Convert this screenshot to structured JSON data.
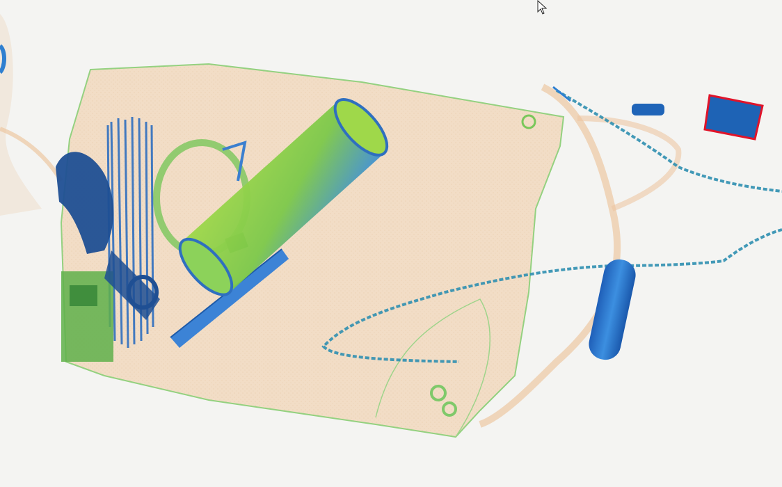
{
  "viewer": {
    "background": "#f4f4f2",
    "palette": {
      "organic": "#f0d2b0",
      "organic_edge": "#e6b58e",
      "mixed": "#7ccf5a",
      "mixed_dark": "#4caa3c",
      "inorganic": "#2f7fd0",
      "inorganic_dark": "#1b4f9a",
      "threat_box": "#e0142a"
    }
  },
  "detections": [
    {
      "label": "",
      "color": "#e0142a",
      "highlighted": true
    }
  ],
  "icons": {
    "cursor": "mouse-pointer-icon"
  }
}
